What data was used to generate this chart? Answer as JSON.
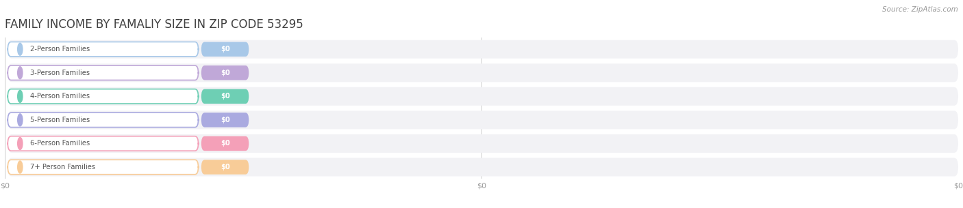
{
  "title": "FAMILY INCOME BY FAMALIY SIZE IN ZIP CODE 53295",
  "source_text": "Source: ZipAtlas.com",
  "categories": [
    "2-Person Families",
    "3-Person Families",
    "4-Person Families",
    "5-Person Families",
    "6-Person Families",
    "7+ Person Families"
  ],
  "values": [
    0,
    0,
    0,
    0,
    0,
    0
  ],
  "bar_colors": [
    "#a8c8e8",
    "#c0a8d8",
    "#6ecfb4",
    "#aaaae0",
    "#f4a0b8",
    "#f8cc98"
  ],
  "background_color": "#ffffff",
  "row_bg_color": "#f2f2f5",
  "xlim_max": 100,
  "xtick_positions": [
    0,
    50,
    100
  ],
  "xtick_labels": [
    "$0",
    "$0",
    "$0"
  ],
  "title_fontsize": 12,
  "source_fontsize": 7.5,
  "value_label": "$0"
}
